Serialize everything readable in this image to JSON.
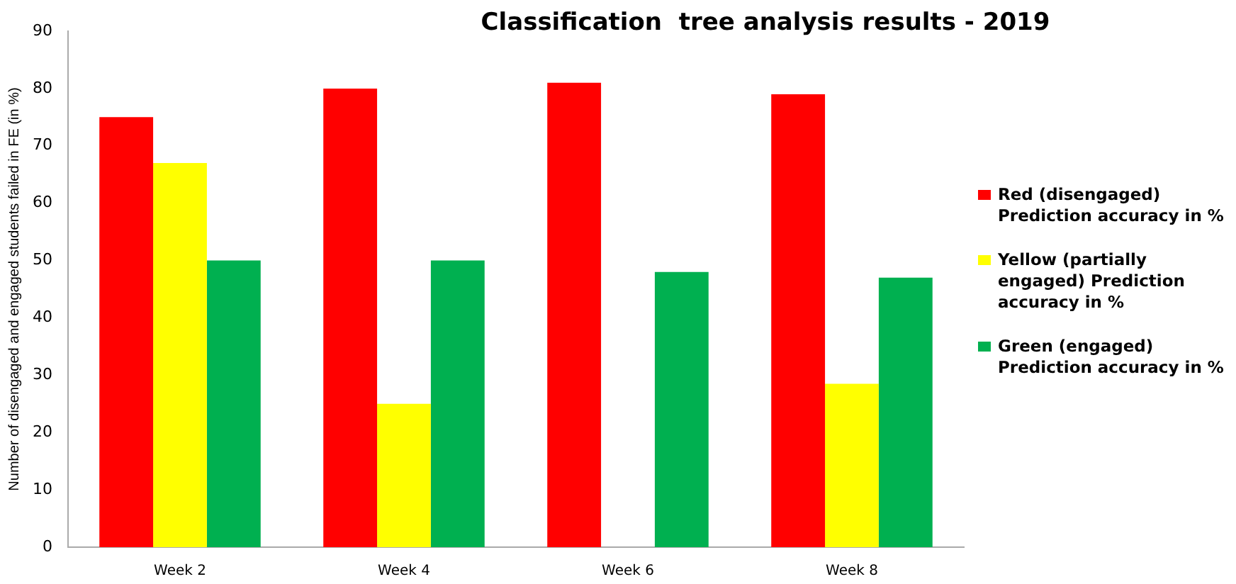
{
  "chart_data": {
    "type": "bar",
    "title": "Classification  tree analysis results - 2019",
    "ylabel": "Number of disengaged and engaged students failed in FE (in %)",
    "categories": [
      "Week 2",
      "Week 4",
      "Week 6",
      "Week 8"
    ],
    "series": [
      {
        "name": "Red (disengaged) Prediction accuracy in %",
        "color": "#ff0000",
        "values": [
          75,
          80,
          81,
          79
        ]
      },
      {
        "name": "Yellow (partially engaged) Prediction accuracy in %",
        "color": "#ffff00",
        "values": [
          67,
          25,
          0,
          28.5
        ]
      },
      {
        "name": "Green (engaged) Prediction accuracy in %",
        "color": "#00b050",
        "values": [
          50,
          50,
          48,
          47
        ]
      }
    ],
    "ylim": [
      0,
      90
    ],
    "yticks": [
      0,
      10,
      20,
      30,
      40,
      50,
      60,
      70,
      80,
      90
    ],
    "grid": false,
    "legend": "right"
  }
}
